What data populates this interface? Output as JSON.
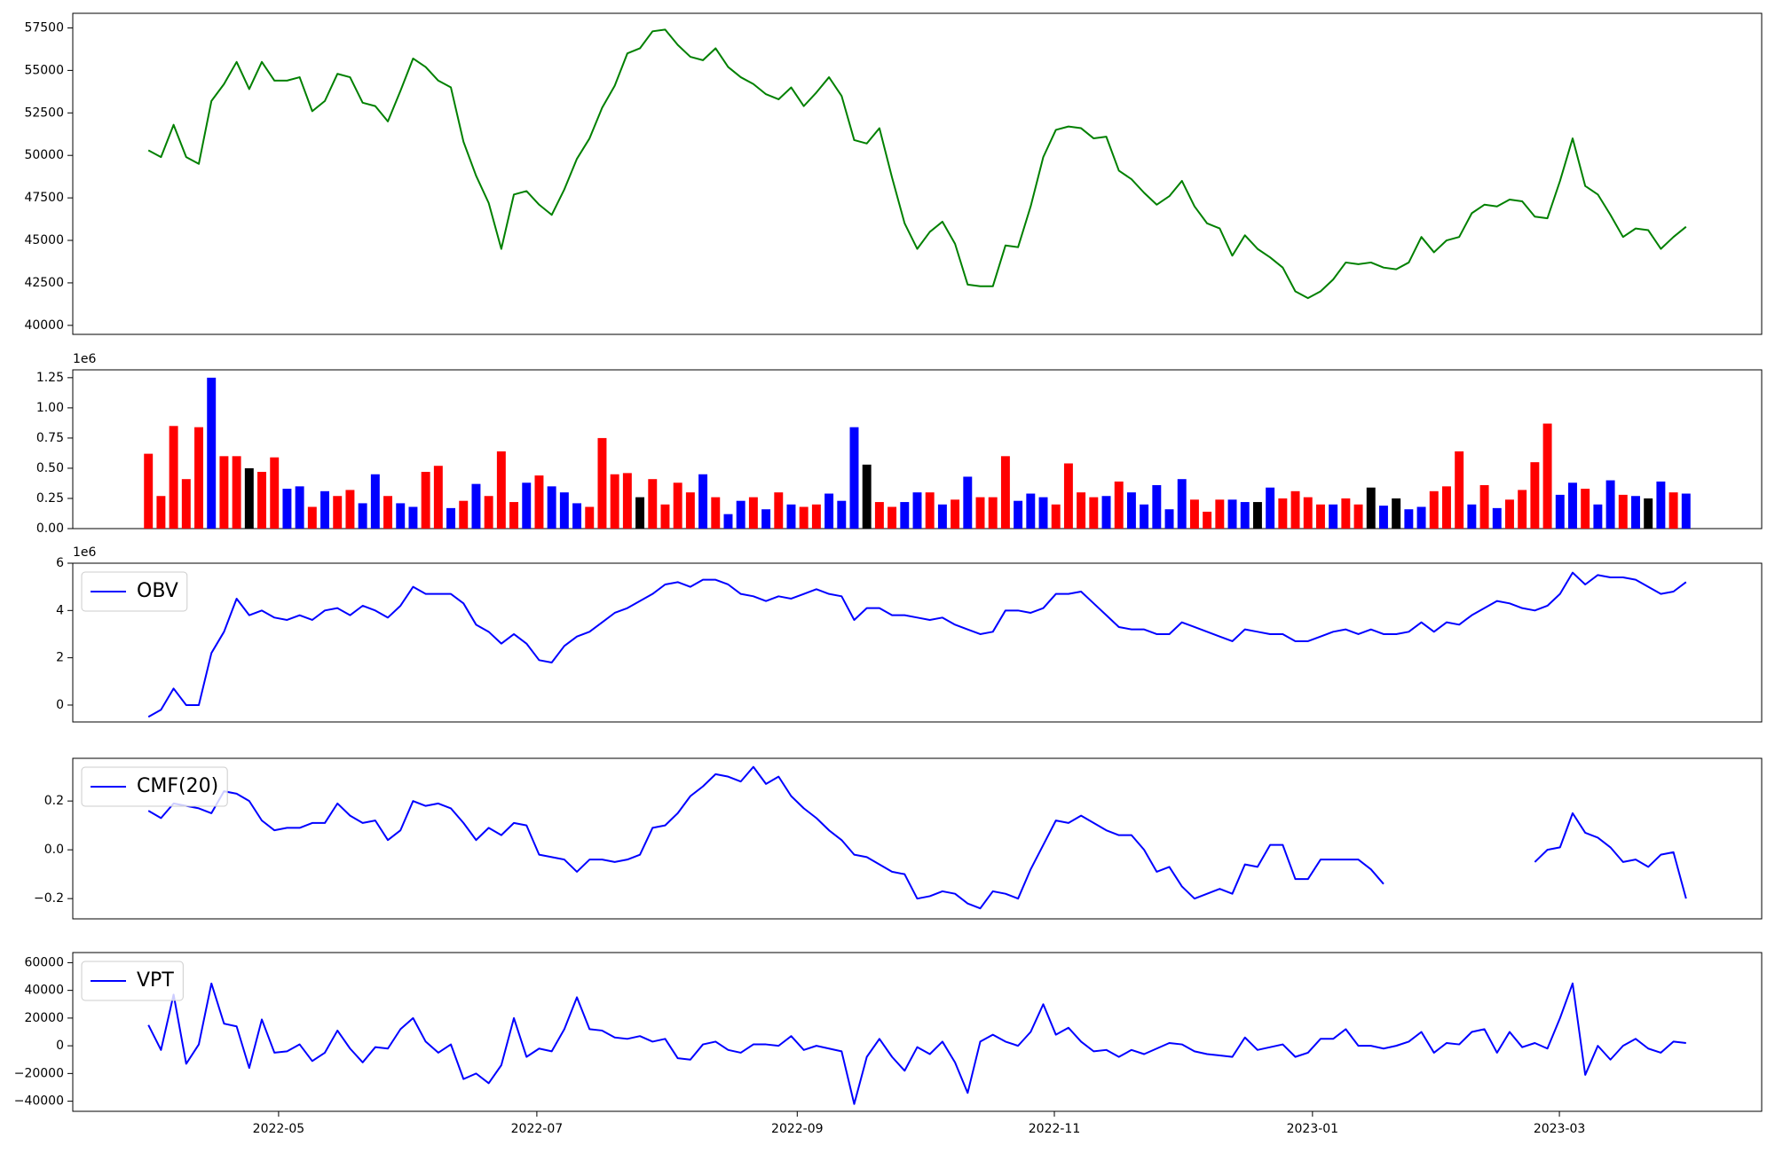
{
  "chart_data": [
    {
      "type": "line",
      "color": "green",
      "values": [
        50300,
        49900,
        51800,
        49900,
        49500,
        53200,
        54200,
        55500,
        53900,
        55500,
        54400,
        54400,
        54600,
        52600,
        53200,
        54800,
        54600,
        53100,
        52900,
        52000,
        53800,
        55700,
        55200,
        54400,
        54000,
        50800,
        48800,
        47200,
        44500,
        47700,
        47900,
        47100,
        46500,
        48000,
        49800,
        51000,
        52800,
        54100,
        56000,
        56300,
        57300,
        57400,
        56500,
        55800,
        55600,
        56300,
        55200,
        54600,
        54200,
        53600,
        53300,
        54000,
        52900,
        53700,
        54600,
        53500,
        50900,
        50700,
        51600,
        48700,
        46000,
        44500,
        45500,
        46100,
        44800,
        42400,
        42300,
        42300,
        44700,
        44600,
        47000,
        49900,
        51500,
        51700,
        51600,
        51000,
        51100,
        49100,
        48600,
        47800,
        47100,
        47600,
        48500,
        47000,
        46000,
        45700,
        44100,
        45300,
        44500,
        44000,
        43400,
        42000,
        41600,
        42000,
        42700,
        43700,
        43600,
        43700,
        43400,
        43300,
        43700,
        45200,
        44300,
        45000,
        45200,
        46600,
        47100,
        47000,
        47400,
        47300,
        46400,
        46300,
        48500,
        51000,
        48200,
        47700,
        46500,
        45200,
        45700,
        45600,
        44500,
        45200,
        45800
      ],
      "ylim": [
        39470,
        58360
      ],
      "yticks": [
        40000,
        42500,
        45000,
        47500,
        50000,
        52500,
        55000,
        57500
      ]
    },
    {
      "type": "bar",
      "offset_label": "1e6",
      "values": [
        620000,
        270000,
        850000,
        410000,
        840000,
        1250000,
        600000,
        600000,
        500000,
        470000,
        590000,
        330000,
        350000,
        180000,
        310000,
        270000,
        320000,
        210000,
        450000,
        270000,
        210000,
        180000,
        470000,
        520000,
        170000,
        230000,
        370000,
        270000,
        640000,
        220000,
        380000,
        440000,
        350000,
        300000,
        210000,
        180000,
        750000,
        450000,
        460000,
        260000,
        410000,
        200000,
        380000,
        300000,
        450000,
        260000,
        120000,
        230000,
        260000,
        160000,
        300000,
        200000,
        180000,
        200000,
        290000,
        230000,
        840000,
        530000,
        220000,
        180000,
        220000,
        300000,
        300000,
        200000,
        240000,
        430000,
        260000,
        260000,
        600000,
        230000,
        290000,
        260000,
        200000,
        540000,
        300000,
        260000,
        270000,
        390000,
        300000,
        200000,
        360000,
        160000,
        410000,
        240000,
        140000,
        240000,
        240000,
        220000,
        220000,
        340000,
        250000,
        310000,
        260000,
        200000,
        200000,
        250000,
        200000,
        340000,
        190000,
        250000,
        160000,
        180000,
        310000,
        350000,
        640000,
        200000,
        360000,
        170000,
        240000,
        320000,
        550000,
        870000,
        280000,
        380000,
        330000,
        200000,
        400000,
        280000,
        270000,
        250000,
        390000,
        300000,
        290000
      ],
      "colors": [
        "red",
        "red",
        "red",
        "red",
        "red",
        "blue",
        "red",
        "red",
        "black",
        "red",
        "red",
        "blue",
        "blue",
        "red",
        "blue",
        "red",
        "red",
        "blue",
        "blue",
        "red",
        "blue",
        "blue",
        "red",
        "red",
        "blue",
        "red",
        "blue",
        "red",
        "red",
        "red",
        "blue",
        "red",
        "blue",
        "blue",
        "blue",
        "red",
        "red",
        "red",
        "red",
        "black",
        "red",
        "red",
        "red",
        "red",
        "blue",
        "red",
        "blue",
        "blue",
        "red",
        "blue",
        "red",
        "blue",
        "red",
        "red",
        "blue",
        "blue",
        "blue",
        "black",
        "red",
        "red",
        "blue",
        "blue",
        "red",
        "blue",
        "red",
        "blue",
        "red",
        "red",
        "red",
        "blue",
        "blue",
        "blue",
        "red",
        "red",
        "red",
        "red",
        "blue",
        "red",
        "blue",
        "blue",
        "blue",
        "blue",
        "blue",
        "red",
        "red",
        "red",
        "blue",
        "blue",
        "black",
        "blue",
        "red",
        "red",
        "red",
        "red",
        "blue",
        "red",
        "red",
        "black",
        "blue",
        "black",
        "blue",
        "blue",
        "red",
        "red",
        "red",
        "blue",
        "red",
        "blue",
        "red",
        "red",
        "red",
        "red",
        "blue",
        "blue",
        "red",
        "blue",
        "blue",
        "red",
        "blue",
        "black",
        "blue",
        "red",
        "blue"
      ],
      "ylim": [
        0,
        1315000
      ],
      "yticks": [
        {
          "value": 0,
          "label": "0.00"
        },
        {
          "value": 250000,
          "label": "0.25"
        },
        {
          "value": 500000,
          "label": "0.50"
        },
        {
          "value": 750000,
          "label": "0.75"
        },
        {
          "value": 1000000,
          "label": "1.00"
        },
        {
          "value": 1250000,
          "label": "1.25"
        }
      ]
    },
    {
      "type": "line",
      "offset_label": "1e6",
      "legend": "upper left",
      "series": [
        {
          "name": "OBV",
          "color": "blue",
          "values": [
            -500000,
            -200000,
            700000,
            0,
            0,
            2200000,
            3100000,
            4500000,
            3800000,
            4000000,
            3700000,
            3600000,
            3800000,
            3600000,
            4000000,
            4100000,
            3800000,
            4200000,
            4000000,
            3700000,
            4200000,
            5000000,
            4700000,
            4700000,
            4700000,
            4300000,
            3400000,
            3100000,
            2600000,
            3000000,
            2600000,
            1900000,
            1800000,
            2500000,
            2900000,
            3100000,
            3500000,
            3900000,
            4100000,
            4400000,
            4700000,
            5100000,
            5200000,
            5000000,
            5300000,
            5300000,
            5100000,
            4700000,
            4600000,
            4400000,
            4600000,
            4500000,
            4700000,
            4900000,
            4700000,
            4600000,
            3600000,
            4100000,
            4100000,
            3800000,
            3800000,
            3700000,
            3600000,
            3700000,
            3400000,
            3200000,
            3000000,
            3100000,
            4000000,
            4000000,
            3900000,
            4100000,
            4700000,
            4700000,
            4800000,
            4300000,
            3800000,
            3300000,
            3200000,
            3200000,
            3000000,
            3000000,
            3500000,
            3300000,
            3100000,
            2900000,
            2700000,
            3200000,
            3100000,
            3000000,
            3000000,
            2700000,
            2700000,
            2900000,
            3100000,
            3200000,
            3000000,
            3200000,
            3000000,
            3000000,
            3100000,
            3500000,
            3100000,
            3500000,
            3400000,
            3800000,
            4100000,
            4400000,
            4300000,
            4100000,
            4000000,
            4200000,
            4700000,
            5600000,
            5100000,
            5500000,
            5400000,
            5400000,
            5300000,
            5000000,
            4700000,
            4800000,
            5200000
          ]
        }
      ],
      "ylim": [
        -714000,
        6000000
      ],
      "yticks": [
        0,
        {
          "value": 2000000,
          "label": "2"
        },
        {
          "value": 4000000,
          "label": "4"
        },
        {
          "value": 6000000,
          "label": "6"
        }
      ]
    },
    {
      "type": "line",
      "legend": "upper left",
      "series": [
        {
          "name": "CMF(20)",
          "color": "blue",
          "values": [
            0.16,
            0.13,
            0.19,
            0.18,
            0.17,
            0.15,
            0.24,
            0.23,
            0.2,
            0.12,
            0.08,
            0.09,
            0.09,
            0.11,
            0.11,
            0.19,
            0.14,
            0.11,
            0.12,
            0.04,
            0.08,
            0.2,
            0.18,
            0.19,
            0.17,
            0.11,
            0.04,
            0.09,
            0.06,
            0.11,
            0.1,
            -0.02,
            -0.03,
            -0.04,
            -0.09,
            -0.04,
            -0.04,
            -0.05,
            -0.04,
            -0.02,
            0.09,
            0.1,
            0.15,
            0.22,
            0.26,
            0.31,
            0.3,
            0.28,
            0.34,
            0.27,
            0.3,
            0.22,
            0.17,
            0.13,
            0.08,
            0.04,
            -0.02,
            -0.03,
            -0.06,
            -0.09,
            -0.1,
            -0.2,
            -0.19,
            -0.17,
            -0.18,
            -0.22,
            -0.24,
            -0.17,
            -0.18,
            -0.2,
            -0.08,
            0.02,
            0.12,
            0.11,
            0.14,
            0.11,
            0.08,
            0.06,
            0.06,
            0,
            -0.09,
            -0.07,
            -0.15,
            -0.2,
            -0.18,
            -0.16,
            -0.18,
            -0.06,
            -0.07,
            0.02,
            0.02,
            -0.12,
            -0.12,
            -0.04,
            -0.04,
            -0.04,
            -0.04,
            -0.08,
            -0.14,
            null,
            null,
            null,
            null,
            null,
            null,
            null,
            null,
            null,
            null,
            null,
            -0.05,
            0,
            0.01,
            0.15,
            0.07,
            0.05,
            0.01,
            -0.05,
            -0.04,
            -0.07,
            -0.02,
            -0.01,
            -0.2
          ]
        }
      ],
      "ylim": [
        -0.283,
        0.375
      ],
      "yticks": [
        {
          "value": -0.2,
          "label": "−0.2"
        },
        {
          "value": 0,
          "label": "0.0"
        },
        0.2
      ]
    },
    {
      "type": "line",
      "legend": "upper left",
      "series": [
        {
          "name": "VPT",
          "color": "blue",
          "values": [
            15000,
            -3000,
            37000,
            -13000,
            1000,
            45000,
            16000,
            14000,
            -16000,
            19000,
            -5000,
            -4000,
            1000,
            -11000,
            -5000,
            11000,
            -2000,
            -12000,
            -1000,
            -2000,
            12000,
            20000,
            3000,
            -5000,
            1000,
            -24000,
            -20000,
            -27000,
            -14000,
            20000,
            -8000,
            -2000,
            -4000,
            12000,
            35000,
            12000,
            11000,
            6000,
            5000,
            7000,
            3000,
            5000,
            -9000,
            -10000,
            1000,
            3000,
            -3000,
            -5000,
            1000,
            1000,
            0,
            7000,
            -3000,
            0,
            -2000,
            -4000,
            -42000,
            -8000,
            5000,
            -8000,
            -18000,
            -1000,
            -6000,
            3000,
            -12000,
            -34000,
            3000,
            8000,
            3000,
            0,
            10000,
            30000,
            8000,
            13000,
            3000,
            -4000,
            -3000,
            -8000,
            -3000,
            -6000,
            -2000,
            2000,
            1000,
            -4000,
            -6000,
            -7000,
            -8000,
            6000,
            -3000,
            -1000,
            1000,
            -8000,
            -5000,
            5000,
            5000,
            12000,
            0,
            0,
            -2000,
            0,
            3000,
            10000,
            -5000,
            2000,
            1000,
            10000,
            12000,
            -5000,
            10000,
            -1000,
            2000,
            -2000,
            20000,
            45000,
            -21000,
            0,
            -10000,
            0,
            5000,
            -2000,
            -5000,
            3000,
            2000
          ]
        }
      ],
      "ylim": [
        -47300,
        67300
      ],
      "yticks": [
        {
          "value": -40000,
          "label": "−40000"
        },
        {
          "value": -20000,
          "label": "−20000"
        },
        0,
        20000,
        40000,
        60000
      ],
      "xlim": [
        -6,
        128
      ],
      "xticks": [
        {
          "value": 10.33,
          "label": "2022-05"
        },
        {
          "value": 30.82,
          "label": "2022-07"
        },
        {
          "value": 51.48,
          "label": "2022-09"
        },
        {
          "value": 71.88,
          "label": "2022-11"
        },
        {
          "value": 92.36,
          "label": "2023-01"
        },
        {
          "value": 111.95,
          "label": "2023-03"
        }
      ]
    }
  ]
}
